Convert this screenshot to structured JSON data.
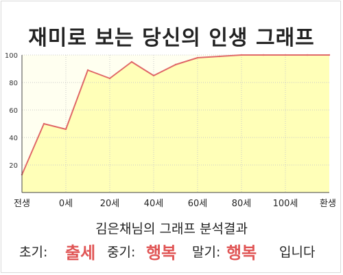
{
  "chart_data": {
    "type": "area",
    "title": "재미로 보는 당신의 인생 그래프",
    "x_tick_labels": [
      "전생",
      "0세",
      "20세",
      "40세",
      "60세",
      "80세",
      "100세",
      "환생"
    ],
    "y_ticks": [
      20,
      40,
      60,
      80,
      100
    ],
    "ylim": [
      0,
      100
    ],
    "x": [
      0,
      1,
      2,
      3,
      4,
      5,
      6,
      7,
      8,
      9,
      10,
      11,
      12,
      13,
      14
    ],
    "values": [
      13,
      50,
      46,
      89,
      83,
      95,
      85,
      93,
      98,
      99,
      100,
      100,
      100,
      100,
      100
    ],
    "grid": true,
    "colors": {
      "fill": "#ffffb8",
      "line": "#e06767",
      "plot_bg": "#fffff0"
    }
  },
  "summary": "김은채님의 그래프 분석결과",
  "result": {
    "early_label": "초기:",
    "early_value": "출세",
    "mid_label": "중기:",
    "mid_value": "행복",
    "late_label": "말기:",
    "late_value": "행복",
    "suffix": "입니다"
  }
}
